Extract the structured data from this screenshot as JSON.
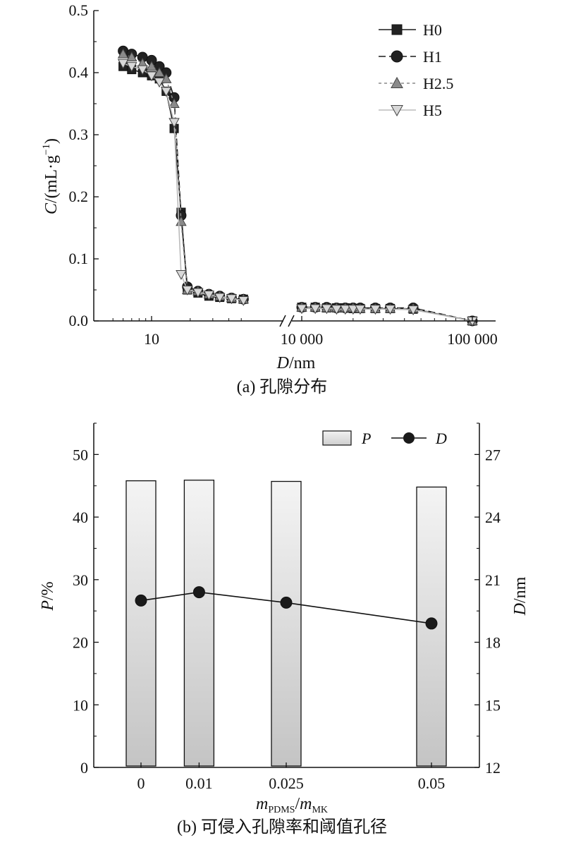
{
  "chart_data": [
    {
      "type": "line",
      "caption": "(a) 孔隙分布",
      "xlabel": {
        "var": "D",
        "unit": "/nm"
      },
      "ylabel": {
        "var": "C",
        "unit": "/(mL·g",
        "sup": "−1",
        "close": ")"
      },
      "x_scale": "log (broken axis)",
      "xticks": [
        "10",
        "10 000",
        "100 000"
      ],
      "yticks": [
        "0.0",
        "0.1",
        "0.2",
        "0.3",
        "0.4",
        "0.5"
      ],
      "ylim": [
        0,
        0.5
      ],
      "legend_position": "top-right",
      "series": [
        {
          "name": "H0",
          "marker": "square",
          "color": "#1a1a1a",
          "dash": "",
          "points": [
            [
              6,
              0.41
            ],
            [
              7,
              0.405
            ],
            [
              8.5,
              0.4
            ],
            [
              10,
              0.395
            ],
            [
              11.5,
              0.39
            ],
            [
              13,
              0.37
            ],
            [
              15,
              0.31
            ],
            [
              17,
              0.175
            ],
            [
              19,
              0.05
            ],
            [
              23,
              0.045
            ],
            [
              28,
              0.04
            ],
            [
              34,
              0.038
            ],
            [
              42,
              0.036
            ],
            [
              52,
              0.035
            ],
            [
              10000,
              0.022
            ],
            [
              12000,
              0.022
            ],
            [
              14000,
              0.021
            ],
            [
              16000,
              0.021
            ],
            [
              18000,
              0.021
            ],
            [
              20000,
              0.02
            ],
            [
              22000,
              0.02
            ],
            [
              27000,
              0.02
            ],
            [
              33000,
              0.02
            ],
            [
              45000,
              0.019
            ],
            [
              100000,
              0.0
            ]
          ]
        },
        {
          "name": "H1",
          "marker": "circle",
          "color": "#1a1a1a",
          "dash": "10 5",
          "points": [
            [
              6,
              0.435
            ],
            [
              7,
              0.43
            ],
            [
              8.5,
              0.425
            ],
            [
              10,
              0.42
            ],
            [
              11.5,
              0.41
            ],
            [
              13,
              0.4
            ],
            [
              15,
              0.36
            ],
            [
              17,
              0.17
            ],
            [
              19,
              0.055
            ],
            [
              23,
              0.048
            ],
            [
              28,
              0.043
            ],
            [
              34,
              0.04
            ],
            [
              42,
              0.037
            ],
            [
              52,
              0.035
            ],
            [
              10000,
              0.022
            ],
            [
              12000,
              0.022
            ],
            [
              14000,
              0.022
            ],
            [
              16000,
              0.021
            ],
            [
              18000,
              0.021
            ],
            [
              20000,
              0.021
            ],
            [
              22000,
              0.021
            ],
            [
              27000,
              0.021
            ],
            [
              33000,
              0.021
            ],
            [
              45000,
              0.021
            ],
            [
              100000,
              0.0
            ]
          ]
        },
        {
          "name": "H2.5",
          "marker": "triangle-up",
          "color": "#888888",
          "dash": "4 4",
          "points": [
            [
              6,
              0.43
            ],
            [
              7,
              0.425
            ],
            [
              8.5,
              0.415
            ],
            [
              10,
              0.41
            ],
            [
              11.5,
              0.4
            ],
            [
              13,
              0.39
            ],
            [
              15,
              0.35
            ],
            [
              17,
              0.16
            ],
            [
              19,
              0.05
            ],
            [
              23,
              0.048
            ],
            [
              28,
              0.043
            ],
            [
              34,
              0.04
            ],
            [
              42,
              0.037
            ],
            [
              52,
              0.035
            ],
            [
              10000,
              0.022
            ],
            [
              12000,
              0.022
            ],
            [
              14000,
              0.021
            ],
            [
              16000,
              0.021
            ],
            [
              18000,
              0.021
            ],
            [
              20000,
              0.021
            ],
            [
              22000,
              0.02
            ],
            [
              27000,
              0.02
            ],
            [
              33000,
              0.02
            ],
            [
              45000,
              0.02
            ],
            [
              100000,
              0.0
            ]
          ]
        },
        {
          "name": "H5",
          "marker": "triangle-down",
          "color": "#bbbbbb",
          "dash": "",
          "points": [
            [
              6,
              0.415
            ],
            [
              7,
              0.41
            ],
            [
              8.5,
              0.405
            ],
            [
              10,
              0.395
            ],
            [
              11.5,
              0.385
            ],
            [
              13,
              0.37
            ],
            [
              15,
              0.32
            ],
            [
              17,
              0.075
            ],
            [
              19,
              0.05
            ],
            [
              23,
              0.046
            ],
            [
              28,
              0.042
            ],
            [
              34,
              0.038
            ],
            [
              42,
              0.036
            ],
            [
              52,
              0.033
            ],
            [
              10000,
              0.02
            ],
            [
              12000,
              0.02
            ],
            [
              14000,
              0.02
            ],
            [
              16000,
              0.019
            ],
            [
              18000,
              0.019
            ],
            [
              20000,
              0.019
            ],
            [
              22000,
              0.019
            ],
            [
              27000,
              0.019
            ],
            [
              33000,
              0.019
            ],
            [
              45000,
              0.018
            ],
            [
              100000,
              0.0
            ]
          ]
        }
      ]
    },
    {
      "type": "bar",
      "caption": "(b) 可侵入孔隙率和阈值孔径",
      "categories": [
        "0",
        "0.01",
        "0.025",
        "0.05"
      ],
      "xlabel": {
        "m1": "m",
        "sub1": "PDMS",
        "slash": "/",
        "m2": "m",
        "sub2": "MK"
      },
      "ylabel_left": {
        "var": "P",
        "unit": "/%"
      },
      "ylabel_right": {
        "var": "D",
        "unit": "/nm"
      },
      "yticks_left": [
        "0",
        "10",
        "20",
        "30",
        "40",
        "50"
      ],
      "yticks_right": [
        "12",
        "15",
        "18",
        "21",
        "24",
        "27"
      ],
      "ylim_left": [
        0,
        55
      ],
      "ylim_right": [
        12,
        28.5
      ],
      "legend_position": "top-right",
      "series": [
        {
          "name": "P",
          "type": "bar",
          "axis": "left",
          "values": [
            45.8,
            45.9,
            45.7,
            44.8
          ]
        },
        {
          "name": "D",
          "type": "line",
          "axis": "right",
          "values": [
            20.0,
            20.4,
            19.9,
            18.9
          ]
        }
      ]
    }
  ]
}
